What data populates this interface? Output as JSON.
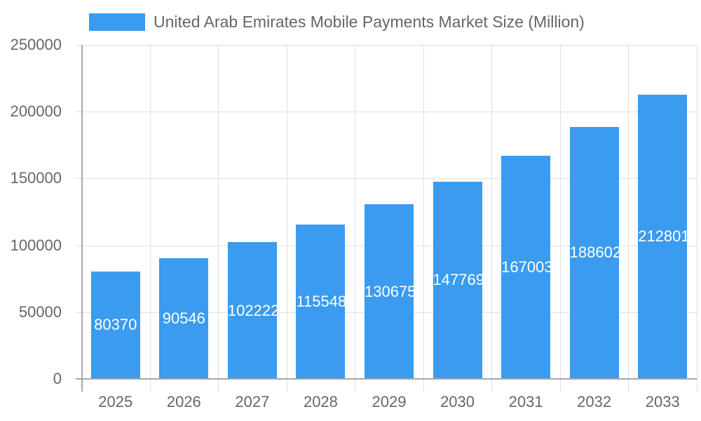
{
  "chart_data": {
    "type": "bar",
    "title": "",
    "xlabel": "",
    "ylabel": "",
    "categories": [
      "2025",
      "2026",
      "2027",
      "2028",
      "2029",
      "2030",
      "2031",
      "2032",
      "2033"
    ],
    "series": [
      {
        "name": "United Arab Emirates Mobile Payments Market Size (Million)",
        "color": "#3a9bef",
        "values": [
          80370,
          90546,
          102222,
          115548,
          130675,
          147769,
          167003,
          188602,
          212801
        ]
      }
    ],
    "ylim": [
      0,
      250000
    ],
    "yticks": [
      "0",
      "50000",
      "100000",
      "150000",
      "200000",
      "250000"
    ],
    "grid": true,
    "legend_position": "top",
    "data_labels": [
      "80370",
      "90546",
      "102222",
      "115548",
      "130675",
      "147769",
      "167003",
      "188602",
      "212801"
    ]
  },
  "legend": {
    "label": "United Arab Emirates Mobile Payments Market Size (Million)",
    "color": "#3a9bef"
  }
}
